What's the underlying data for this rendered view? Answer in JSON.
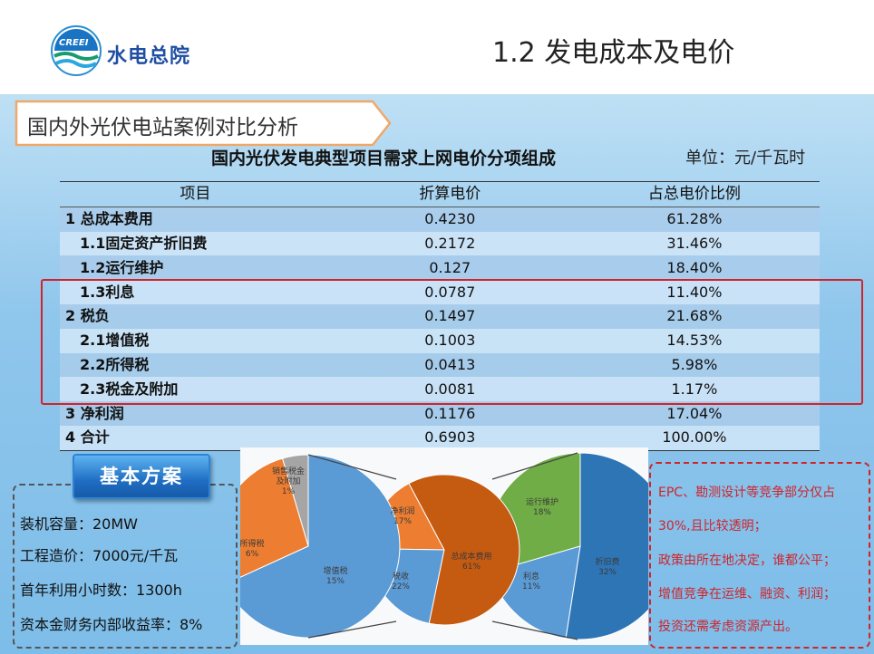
{
  "header": {
    "logo_badge": "CREEI",
    "logo_text": "水电总院",
    "title": "1.2 发电成本及电价"
  },
  "section_tag": "国内外光伏电站案例对比分析",
  "table": {
    "title": "国内光伏发电典型项目需求上网电价分项组成",
    "unit": "单位：元/千瓦时",
    "headers": [
      "项目",
      "折算电价",
      "占总电价比例"
    ],
    "rows": [
      {
        "item": "1 总成本费用",
        "value": "0.4230",
        "pct": "61.28%",
        "level": 1
      },
      {
        "item": "1.1固定资产折旧费",
        "value": "0.2172",
        "pct": "31.46%",
        "level": 2
      },
      {
        "item": "1.2运行维护",
        "value": "0.127",
        "pct": "18.40%",
        "level": 2
      },
      {
        "item": "1.3利息",
        "value": "0.0787",
        "pct": "11.40%",
        "level": 2
      },
      {
        "item": "2 税负",
        "value": "0.1497",
        "pct": "21.68%",
        "level": 1
      },
      {
        "item": "2.1增值税",
        "value": "0.1003",
        "pct": "14.53%",
        "level": 2
      },
      {
        "item": "2.2所得税",
        "value": "0.0413",
        "pct": "5.98%",
        "level": 2
      },
      {
        "item": "2.3税金及附加",
        "value": "0.0081",
        "pct": "1.17%",
        "level": 2
      },
      {
        "item": "3 净利润",
        "value": "0.1176",
        "pct": "17.04%",
        "level": 1
      },
      {
        "item": "4 合计",
        "value": "0.6903",
        "pct": "100.00%",
        "level": 1
      }
    ]
  },
  "basic_plan": {
    "button_label": "基本方案",
    "lines": [
      "装机容量：20MW",
      "工程造价：7000元/千瓦",
      "首年利用小时数：1300h",
      "资本金财务内部收益率：8%"
    ]
  },
  "chart_data": [
    {
      "type": "pie",
      "categories": [
        "增值税",
        "所得税",
        "销售税金及附加"
      ],
      "values": [
        15,
        6,
        1
      ],
      "labels": [
        "增值税\n15%",
        "所得税\n6%",
        "销售税金\n及附加\n1%"
      ]
    },
    {
      "type": "pie",
      "categories": [
        "总成本费用",
        "税收",
        "净利润"
      ],
      "values": [
        61,
        22,
        17
      ],
      "labels": [
        "总成本费用\n61%",
        "税收\n22%",
        "净利润\n17%"
      ]
    },
    {
      "type": "pie",
      "categories": [
        "折旧费",
        "利息",
        "运行维护"
      ],
      "values": [
        32,
        11,
        18
      ],
      "labels": [
        "折旧费\n32%",
        "利息\n11%",
        "运行维护\n18%"
      ]
    }
  ],
  "colors": {
    "accent_red": "#d0242b",
    "blue_slice": "#5b9bd5",
    "orange_slice": "#ed7d31",
    "gray_slice": "#a5a5a5",
    "brown_slice": "#c55a11",
    "green_slice": "#70ad47",
    "dark_blue_slice": "#2e75b6"
  },
  "notes": [
    "EPC、勘测设计等竞争部分仅占",
    "30%,且比较透明；",
    "政策由所在地决定，谁都公平；",
    "增值竞争在运维、融资、利润；",
    "投资还需考虑资源产出。"
  ]
}
